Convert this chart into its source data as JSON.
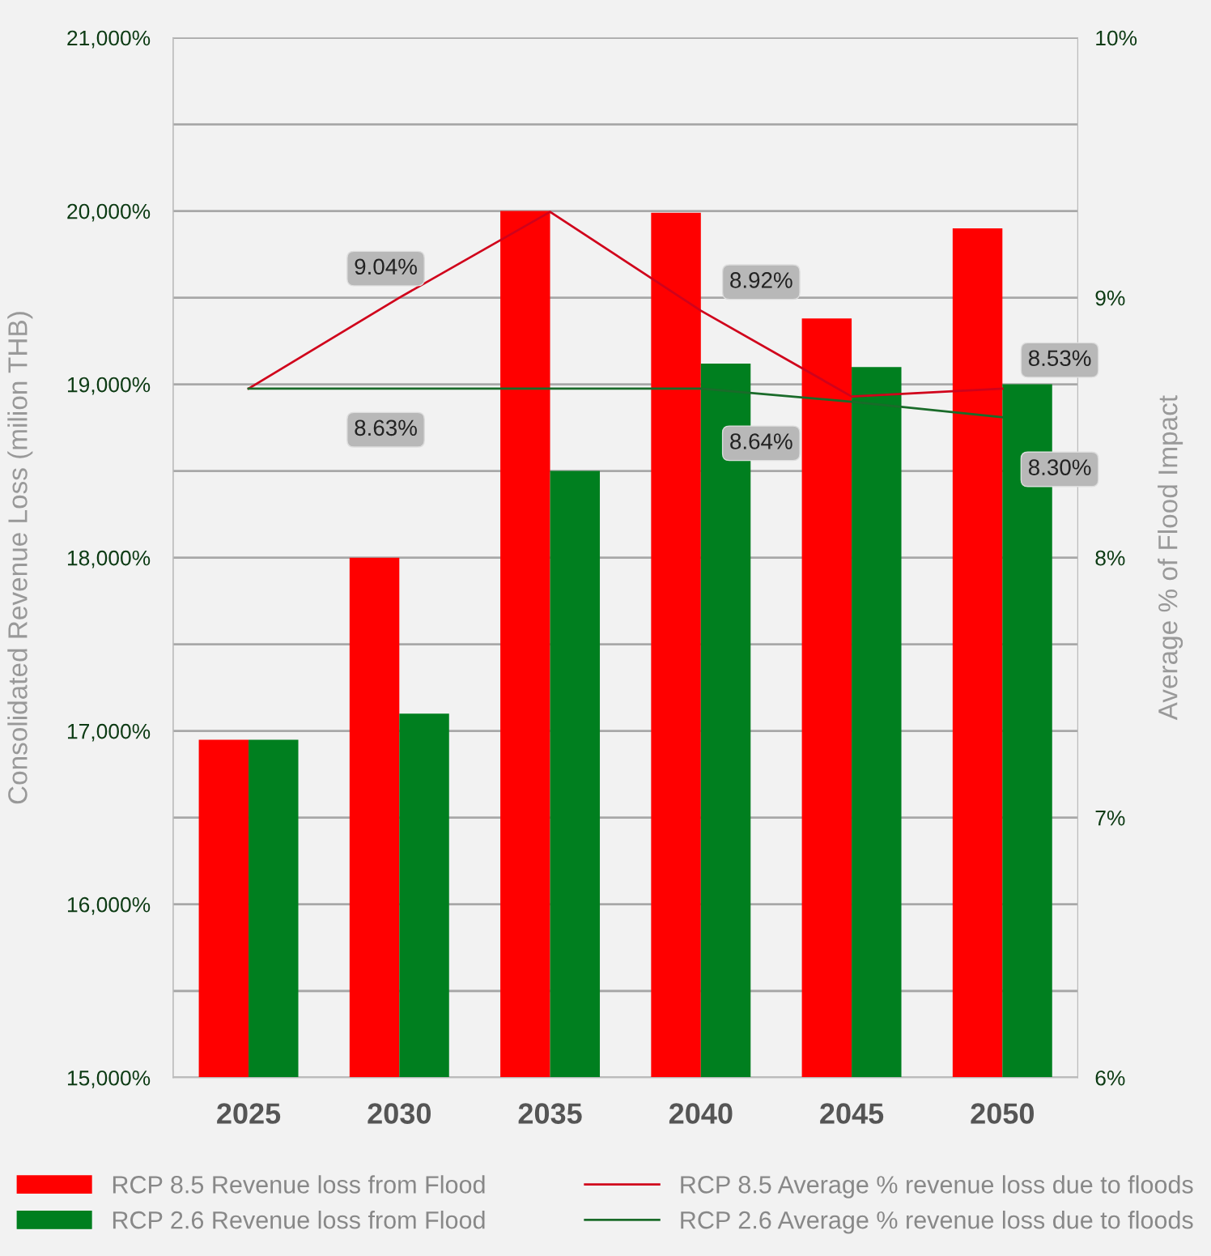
{
  "chart_data": {
    "type": "bar",
    "categories": [
      "2025",
      "2030",
      "2035",
      "2040",
      "2045",
      "2050"
    ],
    "ylabel": "Consolidated Revenue Loss (milion THB)",
    "y2label": "Average % of Flood Impact",
    "series": [
      {
        "name": "RCP 8.5 Revenue loss from Flood",
        "color": "#ff0000",
        "values": [
          16950,
          18000,
          20000,
          19990,
          19380,
          19900
        ]
      },
      {
        "name": "RCP 2.6 Revenue loss from Flood",
        "color": "#007f1f",
        "values": [
          16950,
          17100,
          18500,
          19120,
          19100,
          19000
        ]
      },
      {
        "name": "RCP 8.5 Average % revenue loss due to floods",
        "type": "line",
        "axis": "y2",
        "color": "#d0021b",
        "values": [
          8.65,
          9.0,
          9.33,
          8.95,
          8.62,
          8.65
        ]
      },
      {
        "name": "RCP 2.6 Average % revenue loss due to floods",
        "type": "line",
        "axis": "y2",
        "color": "#1a6b2a",
        "values": [
          8.65,
          8.65,
          8.65,
          8.65,
          8.6,
          8.54
        ]
      }
    ],
    "ylim": [
      15000,
      21000
    ],
    "yticks": [
      {
        "value": 15000,
        "label": "15,000%"
      },
      {
        "value": 15500,
        "label": null
      },
      {
        "value": 16000,
        "label": "16,000%"
      },
      {
        "value": 16500,
        "label": null
      },
      {
        "value": 17000,
        "label": "17,000%"
      },
      {
        "value": 17500,
        "label": null
      },
      {
        "value": 18000,
        "label": "18,000%"
      },
      {
        "value": 18500,
        "label": null
      },
      {
        "value": 19000,
        "label": "19,000%"
      },
      {
        "value": 19500,
        "label": null
      },
      {
        "value": 20000,
        "label": "20,000%"
      },
      {
        "value": 20500,
        "label": null
      },
      {
        "value": 21000,
        "label": "21,000%"
      }
    ],
    "y2lim": [
      6,
      10
    ],
    "y2ticks": [
      {
        "value": 6,
        "label": "6%"
      },
      {
        "value": 7,
        "label": "7%"
      },
      {
        "value": 8,
        "label": "8%"
      },
      {
        "value": 9,
        "label": "9%"
      },
      {
        "value": 10,
        "label": "10%"
      }
    ],
    "annotations": [
      "9.04%",
      "8.63%",
      "8.92%",
      "8.64%",
      "8.53%",
      "8.30%"
    ],
    "grid": "y",
    "legend": "bottom",
    "marker": "none",
    "line_style": "solid"
  }
}
